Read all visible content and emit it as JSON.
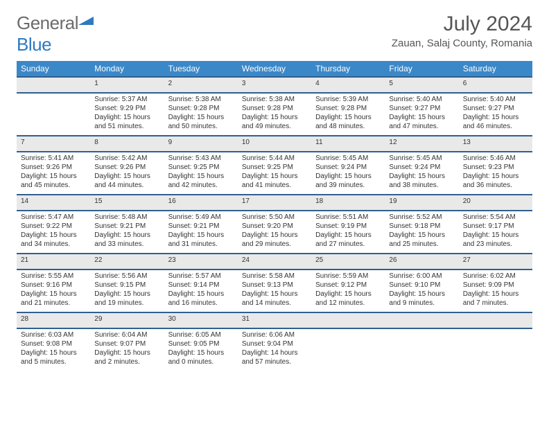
{
  "logo": {
    "text1": "General",
    "text2": "Blue"
  },
  "title": "July 2024",
  "location": "Zauan, Salaj County, Romania",
  "colors": {
    "header_bg": "#3b88c8",
    "row_border": "#2f5f8f",
    "day_bg": "#e9e9e9"
  },
  "weekdays": [
    "Sunday",
    "Monday",
    "Tuesday",
    "Wednesday",
    "Thursday",
    "Friday",
    "Saturday"
  ],
  "weeks": [
    {
      "days": [
        "",
        "1",
        "2",
        "3",
        "4",
        "5",
        "6"
      ],
      "details": [
        "",
        "Sunrise: 5:37 AM\nSunset: 9:29 PM\nDaylight: 15 hours and 51 minutes.",
        "Sunrise: 5:38 AM\nSunset: 9:28 PM\nDaylight: 15 hours and 50 minutes.",
        "Sunrise: 5:38 AM\nSunset: 9:28 PM\nDaylight: 15 hours and 49 minutes.",
        "Sunrise: 5:39 AM\nSunset: 9:28 PM\nDaylight: 15 hours and 48 minutes.",
        "Sunrise: 5:40 AM\nSunset: 9:27 PM\nDaylight: 15 hours and 47 minutes.",
        "Sunrise: 5:40 AM\nSunset: 9:27 PM\nDaylight: 15 hours and 46 minutes."
      ]
    },
    {
      "days": [
        "7",
        "8",
        "9",
        "10",
        "11",
        "12",
        "13"
      ],
      "details": [
        "Sunrise: 5:41 AM\nSunset: 9:26 PM\nDaylight: 15 hours and 45 minutes.",
        "Sunrise: 5:42 AM\nSunset: 9:26 PM\nDaylight: 15 hours and 44 minutes.",
        "Sunrise: 5:43 AM\nSunset: 9:25 PM\nDaylight: 15 hours and 42 minutes.",
        "Sunrise: 5:44 AM\nSunset: 9:25 PM\nDaylight: 15 hours and 41 minutes.",
        "Sunrise: 5:45 AM\nSunset: 9:24 PM\nDaylight: 15 hours and 39 minutes.",
        "Sunrise: 5:45 AM\nSunset: 9:24 PM\nDaylight: 15 hours and 38 minutes.",
        "Sunrise: 5:46 AM\nSunset: 9:23 PM\nDaylight: 15 hours and 36 minutes."
      ]
    },
    {
      "days": [
        "14",
        "15",
        "16",
        "17",
        "18",
        "19",
        "20"
      ],
      "details": [
        "Sunrise: 5:47 AM\nSunset: 9:22 PM\nDaylight: 15 hours and 34 minutes.",
        "Sunrise: 5:48 AM\nSunset: 9:21 PM\nDaylight: 15 hours and 33 minutes.",
        "Sunrise: 5:49 AM\nSunset: 9:21 PM\nDaylight: 15 hours and 31 minutes.",
        "Sunrise: 5:50 AM\nSunset: 9:20 PM\nDaylight: 15 hours and 29 minutes.",
        "Sunrise: 5:51 AM\nSunset: 9:19 PM\nDaylight: 15 hours and 27 minutes.",
        "Sunrise: 5:52 AM\nSunset: 9:18 PM\nDaylight: 15 hours and 25 minutes.",
        "Sunrise: 5:54 AM\nSunset: 9:17 PM\nDaylight: 15 hours and 23 minutes."
      ]
    },
    {
      "days": [
        "21",
        "22",
        "23",
        "24",
        "25",
        "26",
        "27"
      ],
      "details": [
        "Sunrise: 5:55 AM\nSunset: 9:16 PM\nDaylight: 15 hours and 21 minutes.",
        "Sunrise: 5:56 AM\nSunset: 9:15 PM\nDaylight: 15 hours and 19 minutes.",
        "Sunrise: 5:57 AM\nSunset: 9:14 PM\nDaylight: 15 hours and 16 minutes.",
        "Sunrise: 5:58 AM\nSunset: 9:13 PM\nDaylight: 15 hours and 14 minutes.",
        "Sunrise: 5:59 AM\nSunset: 9:12 PM\nDaylight: 15 hours and 12 minutes.",
        "Sunrise: 6:00 AM\nSunset: 9:10 PM\nDaylight: 15 hours and 9 minutes.",
        "Sunrise: 6:02 AM\nSunset: 9:09 PM\nDaylight: 15 hours and 7 minutes."
      ]
    },
    {
      "days": [
        "28",
        "29",
        "30",
        "31",
        "",
        "",
        ""
      ],
      "details": [
        "Sunrise: 6:03 AM\nSunset: 9:08 PM\nDaylight: 15 hours and 5 minutes.",
        "Sunrise: 6:04 AM\nSunset: 9:07 PM\nDaylight: 15 hours and 2 minutes.",
        "Sunrise: 6:05 AM\nSunset: 9:05 PM\nDaylight: 15 hours and 0 minutes.",
        "Sunrise: 6:06 AM\nSunset: 9:04 PM\nDaylight: 14 hours and 57 minutes.",
        "",
        "",
        ""
      ]
    }
  ]
}
